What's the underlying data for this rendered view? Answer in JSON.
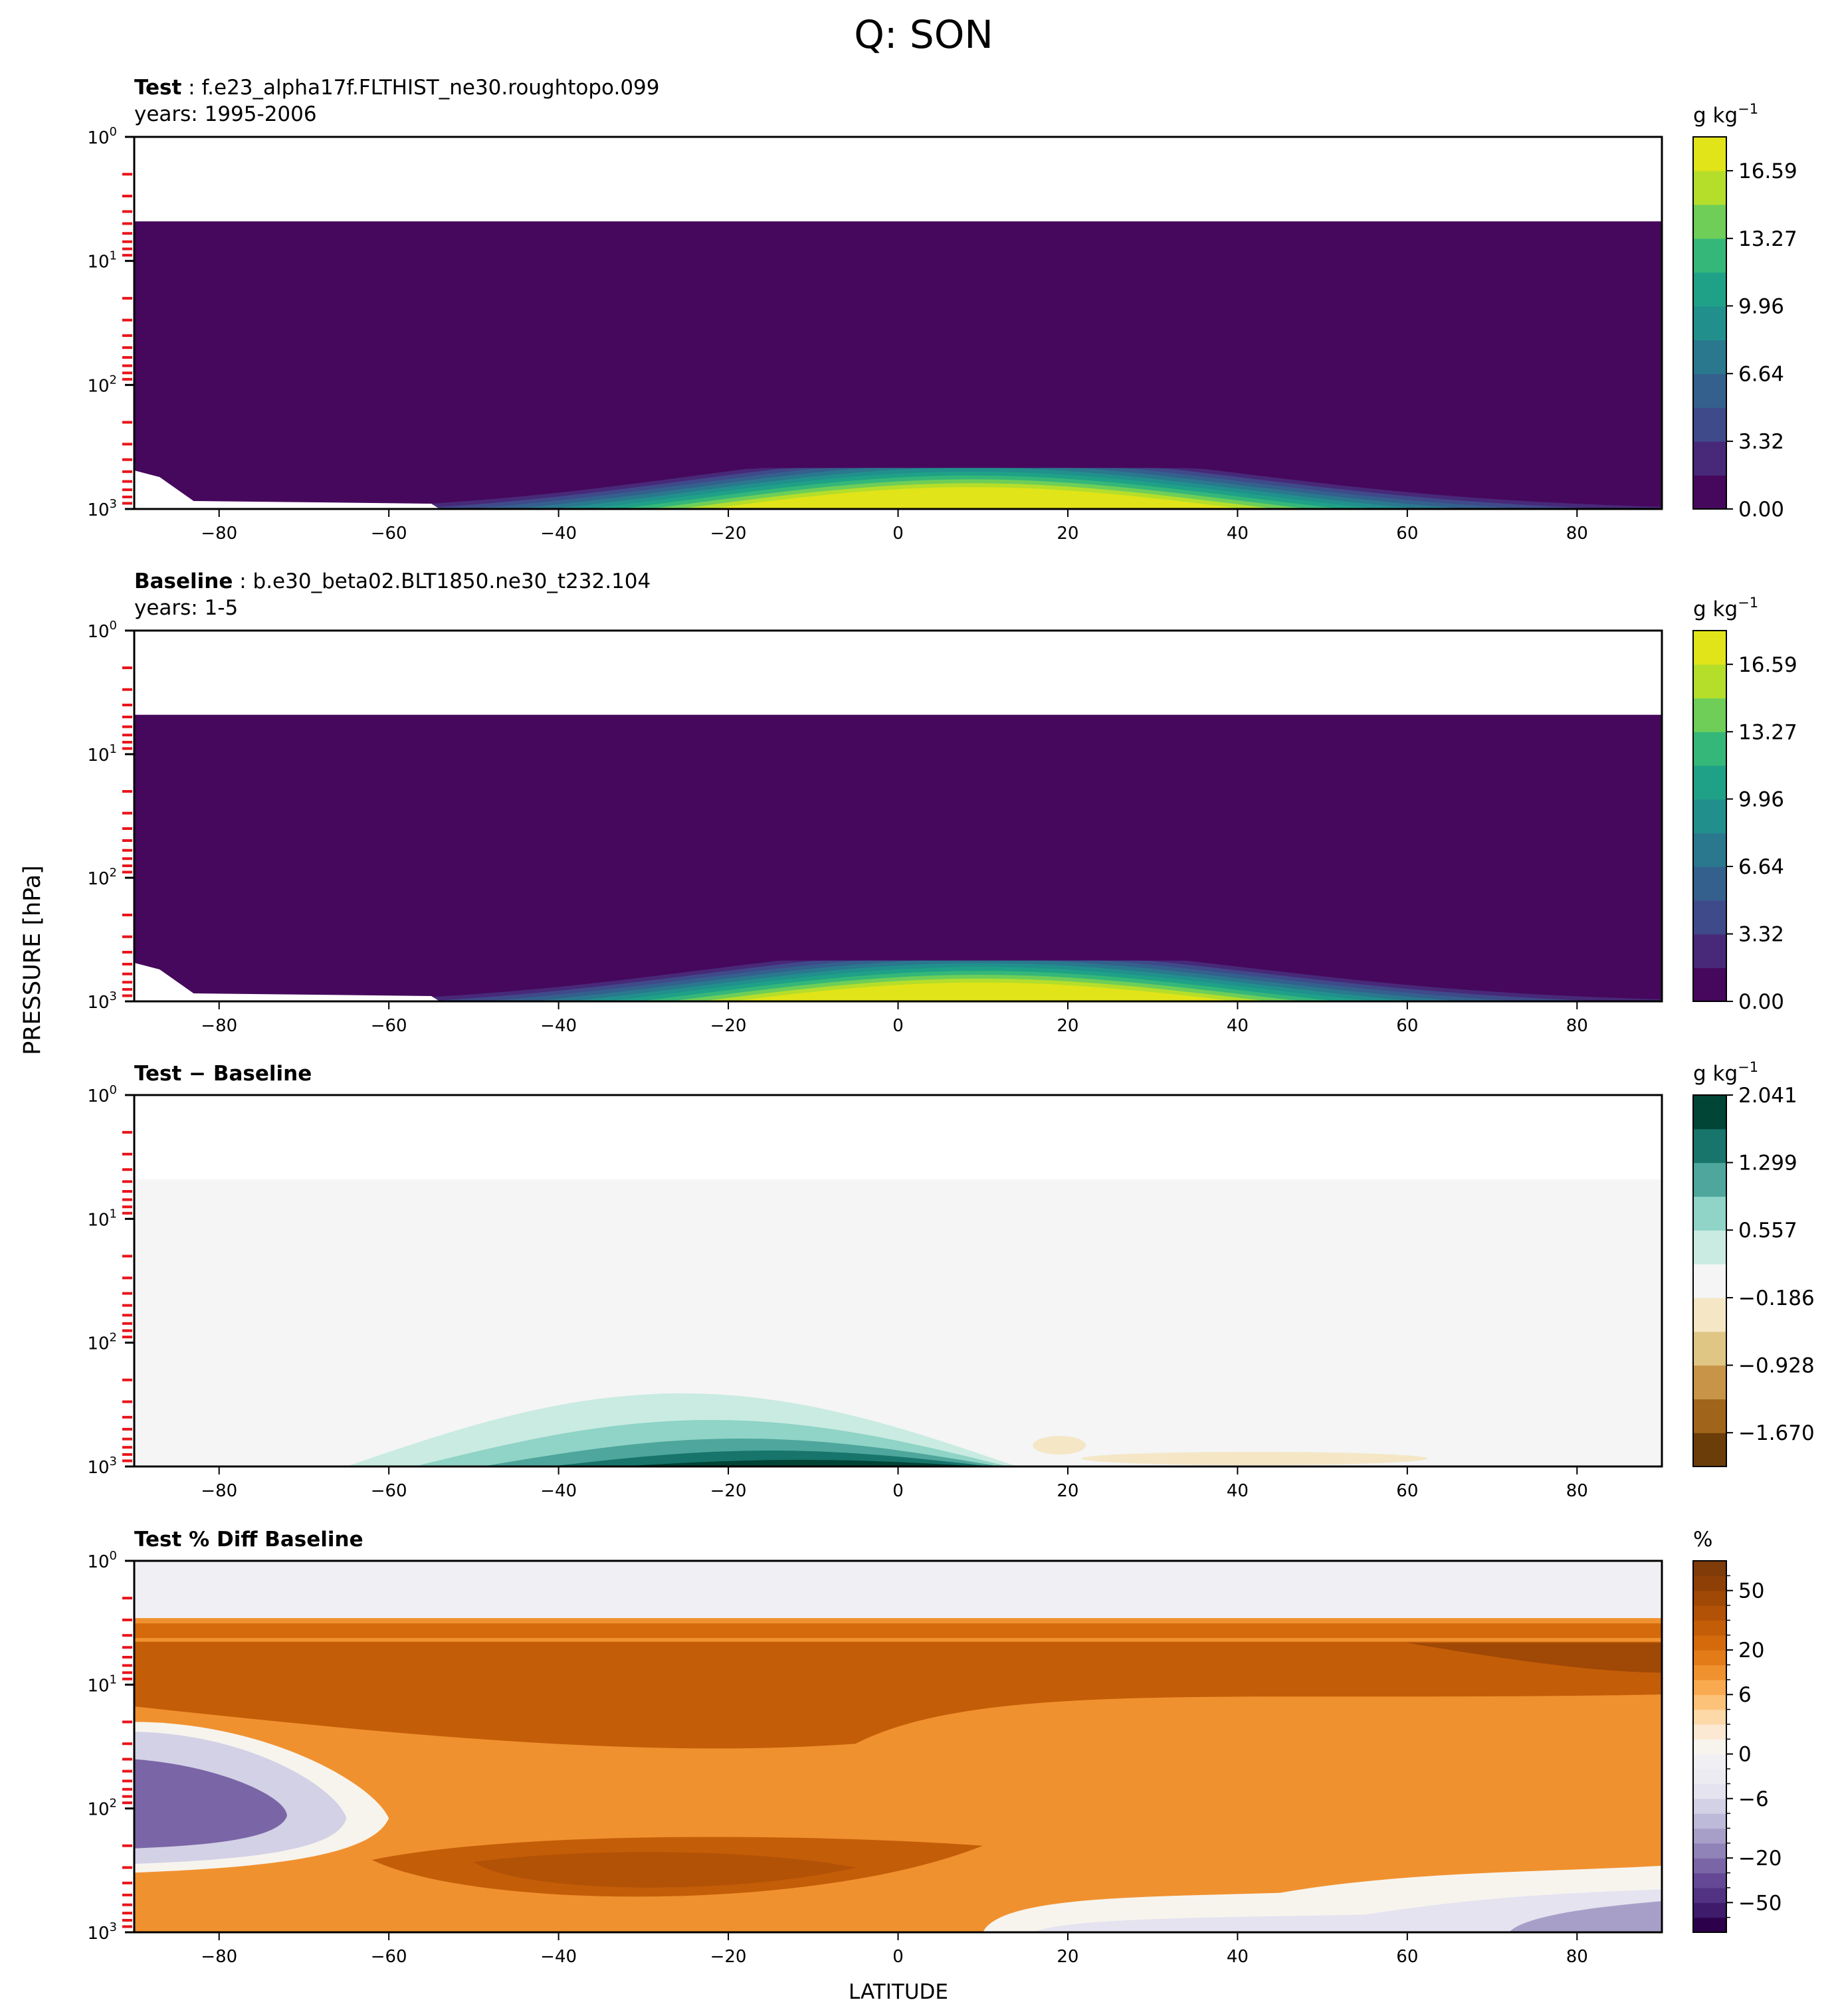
{
  "figure": {
    "title": "Q: SON",
    "ylabel": "PRESSURE [hPa]",
    "xlabel": "LATITUDE"
  },
  "chart_data": [
    {
      "type": "heatmap",
      "panel": "test",
      "title_bold": "Test",
      "title_rest": " : f.e23_alpha17f.FLTHIST_ne30.roughtopo.099",
      "subtitle": "years: 1995-2006",
      "xlim": [
        -90,
        90
      ],
      "ylim": [
        1000,
        1
      ],
      "yscale": "log",
      "x_ticks": [
        -80,
        -60,
        -40,
        -20,
        0,
        20,
        40,
        60,
        80
      ],
      "y_ticks": [
        {
          "base": "10",
          "exp": "0"
        },
        {
          "base": "10",
          "exp": "1"
        },
        {
          "base": "10",
          "exp": "2"
        },
        {
          "base": "10",
          "exp": "3"
        }
      ],
      "field_top_hPa": 4.8,
      "colorbar": {
        "unit_base": "g kg",
        "unit_exp": "−1",
        "ticks": [
          "0.00",
          "3.32",
          "6.64",
          "9.96",
          "13.27",
          "16.59"
        ],
        "tick_values": [
          0,
          3.32,
          6.64,
          9.96,
          13.27,
          16.59
        ],
        "vmin": 0,
        "vmax": 18.25,
        "levels": 11,
        "colors": [
          "#46085c",
          "#482979",
          "#3f4a8a",
          "#34608d",
          "#2a788e",
          "#21908d",
          "#1fa187",
          "#35b779",
          "#6ece58",
          "#b5de2b",
          "#e1e418"
        ]
      }
    },
    {
      "type": "heatmap",
      "panel": "baseline",
      "title_bold": "Baseline",
      "title_rest": " : b.e30_beta02.BLT1850.ne30_t232.104",
      "subtitle": "years: 1-5",
      "xlim": [
        -90,
        90
      ],
      "ylim": [
        1000,
        1
      ],
      "yscale": "log",
      "x_ticks": [
        -80,
        -60,
        -40,
        -20,
        0,
        20,
        40,
        60,
        80
      ],
      "y_ticks": [
        {
          "base": "10",
          "exp": "0"
        },
        {
          "base": "10",
          "exp": "1"
        },
        {
          "base": "10",
          "exp": "2"
        },
        {
          "base": "10",
          "exp": "3"
        }
      ],
      "field_top_hPa": 4.8,
      "colorbar": {
        "unit_base": "g kg",
        "unit_exp": "−1",
        "ticks": [
          "0.00",
          "3.32",
          "6.64",
          "9.96",
          "13.27",
          "16.59"
        ],
        "tick_values": [
          0,
          3.32,
          6.64,
          9.96,
          13.27,
          16.59
        ],
        "vmin": 0,
        "vmax": 18.25,
        "levels": 11,
        "colors": [
          "#46085c",
          "#482979",
          "#3f4a8a",
          "#34608d",
          "#2a788e",
          "#21908d",
          "#1fa187",
          "#35b779",
          "#6ece58",
          "#b5de2b",
          "#e1e418"
        ]
      }
    },
    {
      "type": "heatmap",
      "panel": "difference",
      "title_bold": "Test − Baseline",
      "title_rest": "",
      "subtitle": "",
      "xlim": [
        -90,
        90
      ],
      "ylim": [
        1000,
        1
      ],
      "yscale": "log",
      "x_ticks": [
        -80,
        -60,
        -40,
        -20,
        0,
        20,
        40,
        60,
        80
      ],
      "y_ticks": [
        {
          "base": "10",
          "exp": "0"
        },
        {
          "base": "10",
          "exp": "1"
        },
        {
          "base": "10",
          "exp": "2"
        },
        {
          "base": "10",
          "exp": "3"
        }
      ],
      "field_top_hPa": 4.8,
      "colorbar": {
        "unit_base": "g kg",
        "unit_exp": "−1",
        "ticks": [
          "−1.670",
          "−0.928",
          "−0.186",
          "0.557",
          "1.299",
          "2.041"
        ],
        "tick_values": [
          -1.67,
          -0.928,
          -0.186,
          0.557,
          1.299,
          2.041
        ],
        "vmin": -2.041,
        "vmax": 2.041,
        "levels": 11,
        "colors": [
          "#6b3d08",
          "#a0651b",
          "#c89548",
          "#e0c685",
          "#f5e6c6",
          "#f4f5f4",
          "#c9ebe1",
          "#8fd4c6",
          "#4ea69c",
          "#17756b",
          "#014537"
        ]
      }
    },
    {
      "type": "heatmap",
      "panel": "percent-difference",
      "title_bold": "Test % Diff Baseline",
      "title_rest": "",
      "subtitle": "",
      "xlim": [
        -90,
        90
      ],
      "ylim": [
        1000,
        1
      ],
      "yscale": "log",
      "x_ticks": [
        -80,
        -60,
        -40,
        -20,
        0,
        20,
        40,
        60,
        80
      ],
      "y_ticks": [
        {
          "base": "10",
          "exp": "0"
        },
        {
          "base": "10",
          "exp": "1"
        },
        {
          "base": "10",
          "exp": "2"
        },
        {
          "base": "10",
          "exp": "3"
        }
      ],
      "colorbar": {
        "unit_base": "%",
        "unit_exp": "",
        "ticks": [
          "−50",
          "−20",
          "−6",
          "0",
          "6",
          "20",
          "50"
        ],
        "levels": 25,
        "colors": [
          "#2d004b",
          "#3e1b6b",
          "#523282",
          "#654895",
          "#7a66a6",
          "#9083b8",
          "#a89fc9",
          "#bdb9d9",
          "#d3d1e6",
          "#e4e3ef",
          "#ecebf2",
          "#f0eff4",
          "#f7f4ee",
          "#fce9d3",
          "#fdd9a8",
          "#fdc27a",
          "#f9a94f",
          "#f0912f",
          "#e27b18",
          "#d46a0c",
          "#c45d08",
          "#b25206",
          "#a04805",
          "#8e3f05",
          "#7f3b08"
        ]
      }
    }
  ]
}
